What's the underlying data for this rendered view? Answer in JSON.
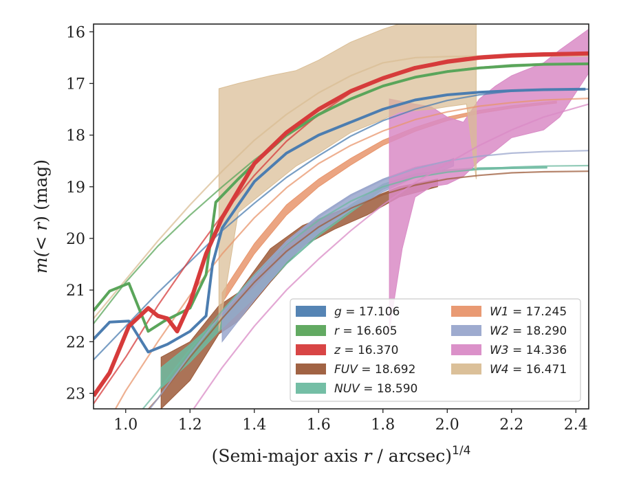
{
  "chart_data": {
    "type": "line",
    "xlabel": "(Semi-major axis r / arcsec)",
    "xlabel_var": "r",
    "xlabel_prefix": "(Semi-major axis ",
    "xlabel_suffix": " / arcsec)",
    "xlabel_exp": "1/4",
    "ylabel_prefix": "m(< ",
    "ylabel_var": "r",
    "ylabel_suffix": ") (mag)",
    "xlim": [
      0.9,
      2.44
    ],
    "ylim": [
      23.3,
      15.85
    ],
    "y_inverted": true,
    "xticks": [
      1.0,
      1.2,
      1.4,
      1.6,
      1.8,
      2.0,
      2.2,
      2.4
    ],
    "xtick_labels": [
      "1.0",
      "1.2",
      "1.4",
      "1.6",
      "1.8",
      "2.0",
      "2.2",
      "2.4"
    ],
    "yticks": [
      16,
      17,
      18,
      19,
      20,
      21,
      22,
      23
    ],
    "ytick_labels": [
      "16",
      "17",
      "18",
      "19",
      "20",
      "21",
      "22",
      "23"
    ],
    "legend_placement": "lower-right",
    "legend_columns": 2,
    "series": [
      {
        "name": "g",
        "label": "g = 17.106",
        "color": "#4c7db0",
        "style": "line",
        "data": [
          [
            0.9,
            21.95
          ],
          [
            0.95,
            21.62
          ],
          [
            1.01,
            21.6
          ],
          [
            1.07,
            22.2
          ],
          [
            1.13,
            22.05
          ],
          [
            1.2,
            21.8
          ],
          [
            1.25,
            21.5
          ],
          [
            1.27,
            20.5
          ],
          [
            1.3,
            19.8
          ],
          [
            1.4,
            18.9
          ],
          [
            1.5,
            18.35
          ],
          [
            1.6,
            18.0
          ],
          [
            1.7,
            17.75
          ],
          [
            1.8,
            17.5
          ],
          [
            1.9,
            17.32
          ],
          [
            2.0,
            17.22
          ],
          [
            2.1,
            17.17
          ],
          [
            2.2,
            17.14
          ],
          [
            2.3,
            17.12
          ],
          [
            2.43,
            17.11
          ]
        ],
        "model": [
          [
            0.9,
            22.35
          ],
          [
            1.0,
            21.7
          ],
          [
            1.1,
            21.05
          ],
          [
            1.2,
            20.45
          ],
          [
            1.3,
            19.85
          ],
          [
            1.4,
            19.32
          ],
          [
            1.5,
            18.82
          ],
          [
            1.6,
            18.4
          ],
          [
            1.7,
            18.02
          ],
          [
            1.8,
            17.72
          ],
          [
            1.9,
            17.5
          ],
          [
            2.0,
            17.33
          ],
          [
            2.1,
            17.22
          ],
          [
            2.2,
            17.15
          ],
          [
            2.3,
            17.12
          ],
          [
            2.44,
            17.11
          ]
        ]
      },
      {
        "name": "r",
        "label": "r = 16.605",
        "color": "#5aa55a",
        "style": "line",
        "data": [
          [
            0.9,
            21.4
          ],
          [
            0.95,
            21.02
          ],
          [
            1.01,
            20.87
          ],
          [
            1.07,
            21.8
          ],
          [
            1.12,
            21.6
          ],
          [
            1.2,
            21.35
          ],
          [
            1.25,
            20.7
          ],
          [
            1.28,
            19.3
          ],
          [
            1.35,
            18.85
          ],
          [
            1.4,
            18.55
          ],
          [
            1.5,
            18.0
          ],
          [
            1.6,
            17.6
          ],
          [
            1.7,
            17.3
          ],
          [
            1.8,
            17.05
          ],
          [
            1.9,
            16.88
          ],
          [
            2.0,
            16.77
          ],
          [
            2.1,
            16.7
          ],
          [
            2.2,
            16.66
          ],
          [
            2.3,
            16.63
          ],
          [
            2.44,
            16.62
          ]
        ],
        "model": [
          [
            0.9,
            21.65
          ],
          [
            1.0,
            20.85
          ],
          [
            1.1,
            20.15
          ],
          [
            1.2,
            19.55
          ],
          [
            1.3,
            19.0
          ],
          [
            1.4,
            18.48
          ],
          [
            1.5,
            18.02
          ],
          [
            1.6,
            17.62
          ],
          [
            1.7,
            17.3
          ],
          [
            1.8,
            17.05
          ],
          [
            1.9,
            16.88
          ],
          [
            2.0,
            16.76
          ],
          [
            2.1,
            16.69
          ],
          [
            2.2,
            16.64
          ],
          [
            2.3,
            16.62
          ],
          [
            2.44,
            16.61
          ]
        ]
      },
      {
        "name": "z",
        "label": "z = 16.370",
        "color": "#d63b3b",
        "style": "line",
        "data": [
          [
            0.9,
            23.05
          ],
          [
            0.95,
            22.6
          ],
          [
            1.01,
            21.7
          ],
          [
            1.07,
            21.35
          ],
          [
            1.1,
            21.5
          ],
          [
            1.13,
            21.55
          ],
          [
            1.16,
            21.8
          ],
          [
            1.2,
            21.25
          ],
          [
            1.25,
            20.3
          ],
          [
            1.3,
            19.6
          ],
          [
            1.4,
            18.55
          ],
          [
            1.5,
            17.95
          ],
          [
            1.6,
            17.5
          ],
          [
            1.7,
            17.15
          ],
          [
            1.8,
            16.9
          ],
          [
            1.9,
            16.7
          ],
          [
            2.0,
            16.58
          ],
          [
            2.1,
            16.5
          ],
          [
            2.2,
            16.46
          ],
          [
            2.3,
            16.44
          ],
          [
            2.44,
            16.42
          ]
        ],
        "model": [
          [
            0.9,
            23.2
          ],
          [
            1.0,
            22.3
          ],
          [
            1.1,
            21.3
          ],
          [
            1.2,
            20.4
          ],
          [
            1.3,
            19.55
          ],
          [
            1.4,
            18.78
          ],
          [
            1.5,
            18.12
          ],
          [
            1.6,
            17.6
          ],
          [
            1.7,
            17.18
          ],
          [
            1.8,
            16.88
          ],
          [
            1.9,
            16.68
          ],
          [
            2.0,
            16.55
          ],
          [
            2.1,
            16.47
          ],
          [
            2.2,
            16.43
          ],
          [
            2.3,
            16.41
          ],
          [
            2.44,
            16.4
          ]
        ]
      },
      {
        "name": "FUV",
        "label": "FUV = 18.692",
        "color": "#9c5b3a",
        "style": "band",
        "data": [
          [
            1.11,
            22.3,
            23.3
          ],
          [
            1.2,
            22.0,
            22.75
          ],
          [
            1.29,
            21.3,
            21.85
          ],
          [
            1.35,
            21.05,
            21.6
          ],
          [
            1.45,
            20.2,
            20.85
          ],
          [
            1.55,
            19.75,
            20.15
          ],
          [
            1.65,
            19.5,
            19.82
          ],
          [
            1.75,
            19.25,
            19.55
          ],
          [
            1.85,
            19.0,
            19.2
          ],
          [
            1.97,
            18.85,
            19.0
          ]
        ],
        "model": [
          [
            1.0,
            23.8
          ],
          [
            1.1,
            23.1
          ],
          [
            1.2,
            22.3
          ],
          [
            1.3,
            21.55
          ],
          [
            1.4,
            20.85
          ],
          [
            1.5,
            20.25
          ],
          [
            1.6,
            19.78
          ],
          [
            1.7,
            19.42
          ],
          [
            1.8,
            19.15
          ],
          [
            1.9,
            18.97
          ],
          [
            2.0,
            18.85
          ],
          [
            2.1,
            18.78
          ],
          [
            2.2,
            18.73
          ],
          [
            2.3,
            18.71
          ],
          [
            2.44,
            18.7
          ]
        ]
      },
      {
        "name": "NUV",
        "label": "NUV = 18.590",
        "color": "#6dbaa0",
        "style": "band",
        "data": [
          [
            1.11,
            22.5,
            22.9
          ],
          [
            1.2,
            22.05,
            22.4
          ],
          [
            1.29,
            21.55,
            21.8
          ],
          [
            1.4,
            20.95,
            21.15
          ],
          [
            1.5,
            20.3,
            20.5
          ],
          [
            1.6,
            19.8,
            19.95
          ],
          [
            1.7,
            19.35,
            19.5
          ],
          [
            1.8,
            18.95,
            19.05
          ],
          [
            1.9,
            18.75,
            18.82
          ],
          [
            2.0,
            18.67,
            18.72
          ],
          [
            2.1,
            18.63,
            18.67
          ],
          [
            2.2,
            18.62,
            18.65
          ],
          [
            2.31,
            18.61,
            18.64
          ]
        ],
        "model": [
          [
            1.0,
            23.7
          ],
          [
            1.1,
            22.95
          ],
          [
            1.2,
            22.15
          ],
          [
            1.3,
            21.4
          ],
          [
            1.4,
            20.72
          ],
          [
            1.5,
            20.12
          ],
          [
            1.6,
            19.65
          ],
          [
            1.7,
            19.28
          ],
          [
            1.8,
            19.0
          ],
          [
            1.9,
            18.82
          ],
          [
            2.0,
            18.72
          ],
          [
            2.1,
            18.66
          ],
          [
            2.2,
            18.62
          ],
          [
            2.3,
            18.6
          ],
          [
            2.44,
            18.59
          ]
        ]
      },
      {
        "name": "W1",
        "label": "W1 = 17.245",
        "color": "#e8956c",
        "style": "band",
        "data": [
          [
            1.3,
            21.05,
            21.25
          ],
          [
            1.4,
            20.1,
            20.3
          ],
          [
            1.5,
            19.35,
            19.55
          ],
          [
            1.6,
            18.85,
            19.0
          ],
          [
            1.7,
            18.45,
            18.58
          ],
          [
            1.8,
            18.1,
            18.2
          ],
          [
            1.9,
            17.85,
            17.93
          ],
          [
            2.0,
            17.65,
            17.72
          ],
          [
            2.1,
            17.52,
            17.58
          ],
          [
            2.2,
            17.43,
            17.48
          ],
          [
            2.34,
            17.34,
            17.38
          ]
        ],
        "model": [
          [
            0.95,
            23.5
          ],
          [
            1.0,
            22.95
          ],
          [
            1.1,
            22.0
          ],
          [
            1.2,
            21.1
          ],
          [
            1.3,
            20.3
          ],
          [
            1.4,
            19.6
          ],
          [
            1.5,
            19.02
          ],
          [
            1.6,
            18.55
          ],
          [
            1.7,
            18.2
          ],
          [
            1.8,
            17.92
          ],
          [
            1.9,
            17.7
          ],
          [
            2.0,
            17.55
          ],
          [
            2.1,
            17.44
          ],
          [
            2.2,
            17.37
          ],
          [
            2.3,
            17.32
          ],
          [
            2.44,
            17.29
          ]
        ]
      },
      {
        "name": "W2",
        "label": "W2 = 18.290",
        "color": "#99a6cc",
        "style": "band",
        "data": [
          [
            1.3,
            21.4,
            22.0
          ],
          [
            1.4,
            20.7,
            21.2
          ],
          [
            1.5,
            20.05,
            20.45
          ],
          [
            1.6,
            19.55,
            19.9
          ],
          [
            1.7,
            19.15,
            19.45
          ],
          [
            1.8,
            18.85,
            19.1
          ],
          [
            1.9,
            18.62,
            18.82
          ],
          [
            2.0,
            18.5,
            18.65
          ],
          [
            2.02,
            18.45,
            18.6
          ]
        ],
        "model": [
          [
            1.0,
            23.9
          ],
          [
            1.1,
            23.1
          ],
          [
            1.2,
            22.25
          ],
          [
            1.3,
            21.45
          ],
          [
            1.4,
            20.75
          ],
          [
            1.5,
            20.1
          ],
          [
            1.6,
            19.58
          ],
          [
            1.7,
            19.17
          ],
          [
            1.8,
            18.87
          ],
          [
            1.9,
            18.65
          ],
          [
            2.0,
            18.5
          ],
          [
            2.1,
            18.41
          ],
          [
            2.2,
            18.35
          ],
          [
            2.3,
            18.32
          ],
          [
            2.44,
            18.3
          ]
        ]
      },
      {
        "name": "W3",
        "label": "W3 = 14.336",
        "color": "#d98bc6",
        "style": "band",
        "data": [
          [
            1.82,
            17.3,
            21.8
          ],
          [
            1.86,
            17.35,
            20.2
          ],
          [
            1.9,
            17.4,
            19.2
          ],
          [
            1.95,
            17.45,
            19.0
          ],
          [
            2.0,
            17.65,
            18.95
          ],
          [
            2.05,
            17.75,
            18.8
          ],
          [
            2.1,
            17.3,
            18.5
          ],
          [
            2.15,
            17.05,
            18.3
          ],
          [
            2.2,
            16.85,
            18.05
          ],
          [
            2.3,
            16.6,
            17.9
          ],
          [
            2.35,
            16.35,
            17.65
          ],
          [
            2.44,
            15.95,
            16.8
          ]
        ],
        "model": [
          [
            1.05,
            24.0
          ],
          [
            1.2,
            23.4
          ],
          [
            1.3,
            22.5
          ],
          [
            1.4,
            21.7
          ],
          [
            1.5,
            21.0
          ],
          [
            1.6,
            20.4
          ],
          [
            1.7,
            19.85
          ],
          [
            1.8,
            19.35
          ],
          [
            1.9,
            18.92
          ],
          [
            2.0,
            18.55
          ],
          [
            2.1,
            18.2
          ],
          [
            2.2,
            17.9
          ],
          [
            2.3,
            17.65
          ],
          [
            2.44,
            17.4
          ]
        ]
      },
      {
        "name": "W4",
        "label": "W4 = 16.471",
        "color": "#d9bd94",
        "style": "band",
        "data": [
          [
            1.29,
            17.1,
            21.8
          ],
          [
            1.35,
            17.0,
            19.5
          ],
          [
            1.45,
            16.85,
            19.0
          ],
          [
            1.53,
            16.75,
            18.6
          ],
          [
            1.6,
            16.55,
            18.35
          ],
          [
            1.7,
            16.2,
            17.95
          ],
          [
            1.8,
            15.95,
            17.7
          ],
          [
            1.85,
            15.85,
            17.55
          ],
          [
            1.95,
            15.85,
            17.5
          ],
          [
            2.0,
            15.85,
            17.45
          ],
          [
            2.06,
            15.85,
            17.4
          ],
          [
            2.09,
            15.85,
            18.85
          ]
        ],
        "model": [
          [
            0.9,
            21.55
          ],
          [
            1.0,
            20.8
          ],
          [
            1.1,
            20.05
          ],
          [
            1.2,
            19.35
          ],
          [
            1.3,
            18.7
          ],
          [
            1.4,
            18.1
          ],
          [
            1.5,
            17.6
          ],
          [
            1.6,
            17.18
          ],
          [
            1.7,
            16.85
          ],
          [
            1.8,
            16.6
          ],
          [
            1.9,
            16.5
          ],
          [
            2.0,
            16.48
          ],
          [
            2.1,
            16.47
          ],
          [
            2.44,
            16.47
          ]
        ]
      }
    ]
  }
}
